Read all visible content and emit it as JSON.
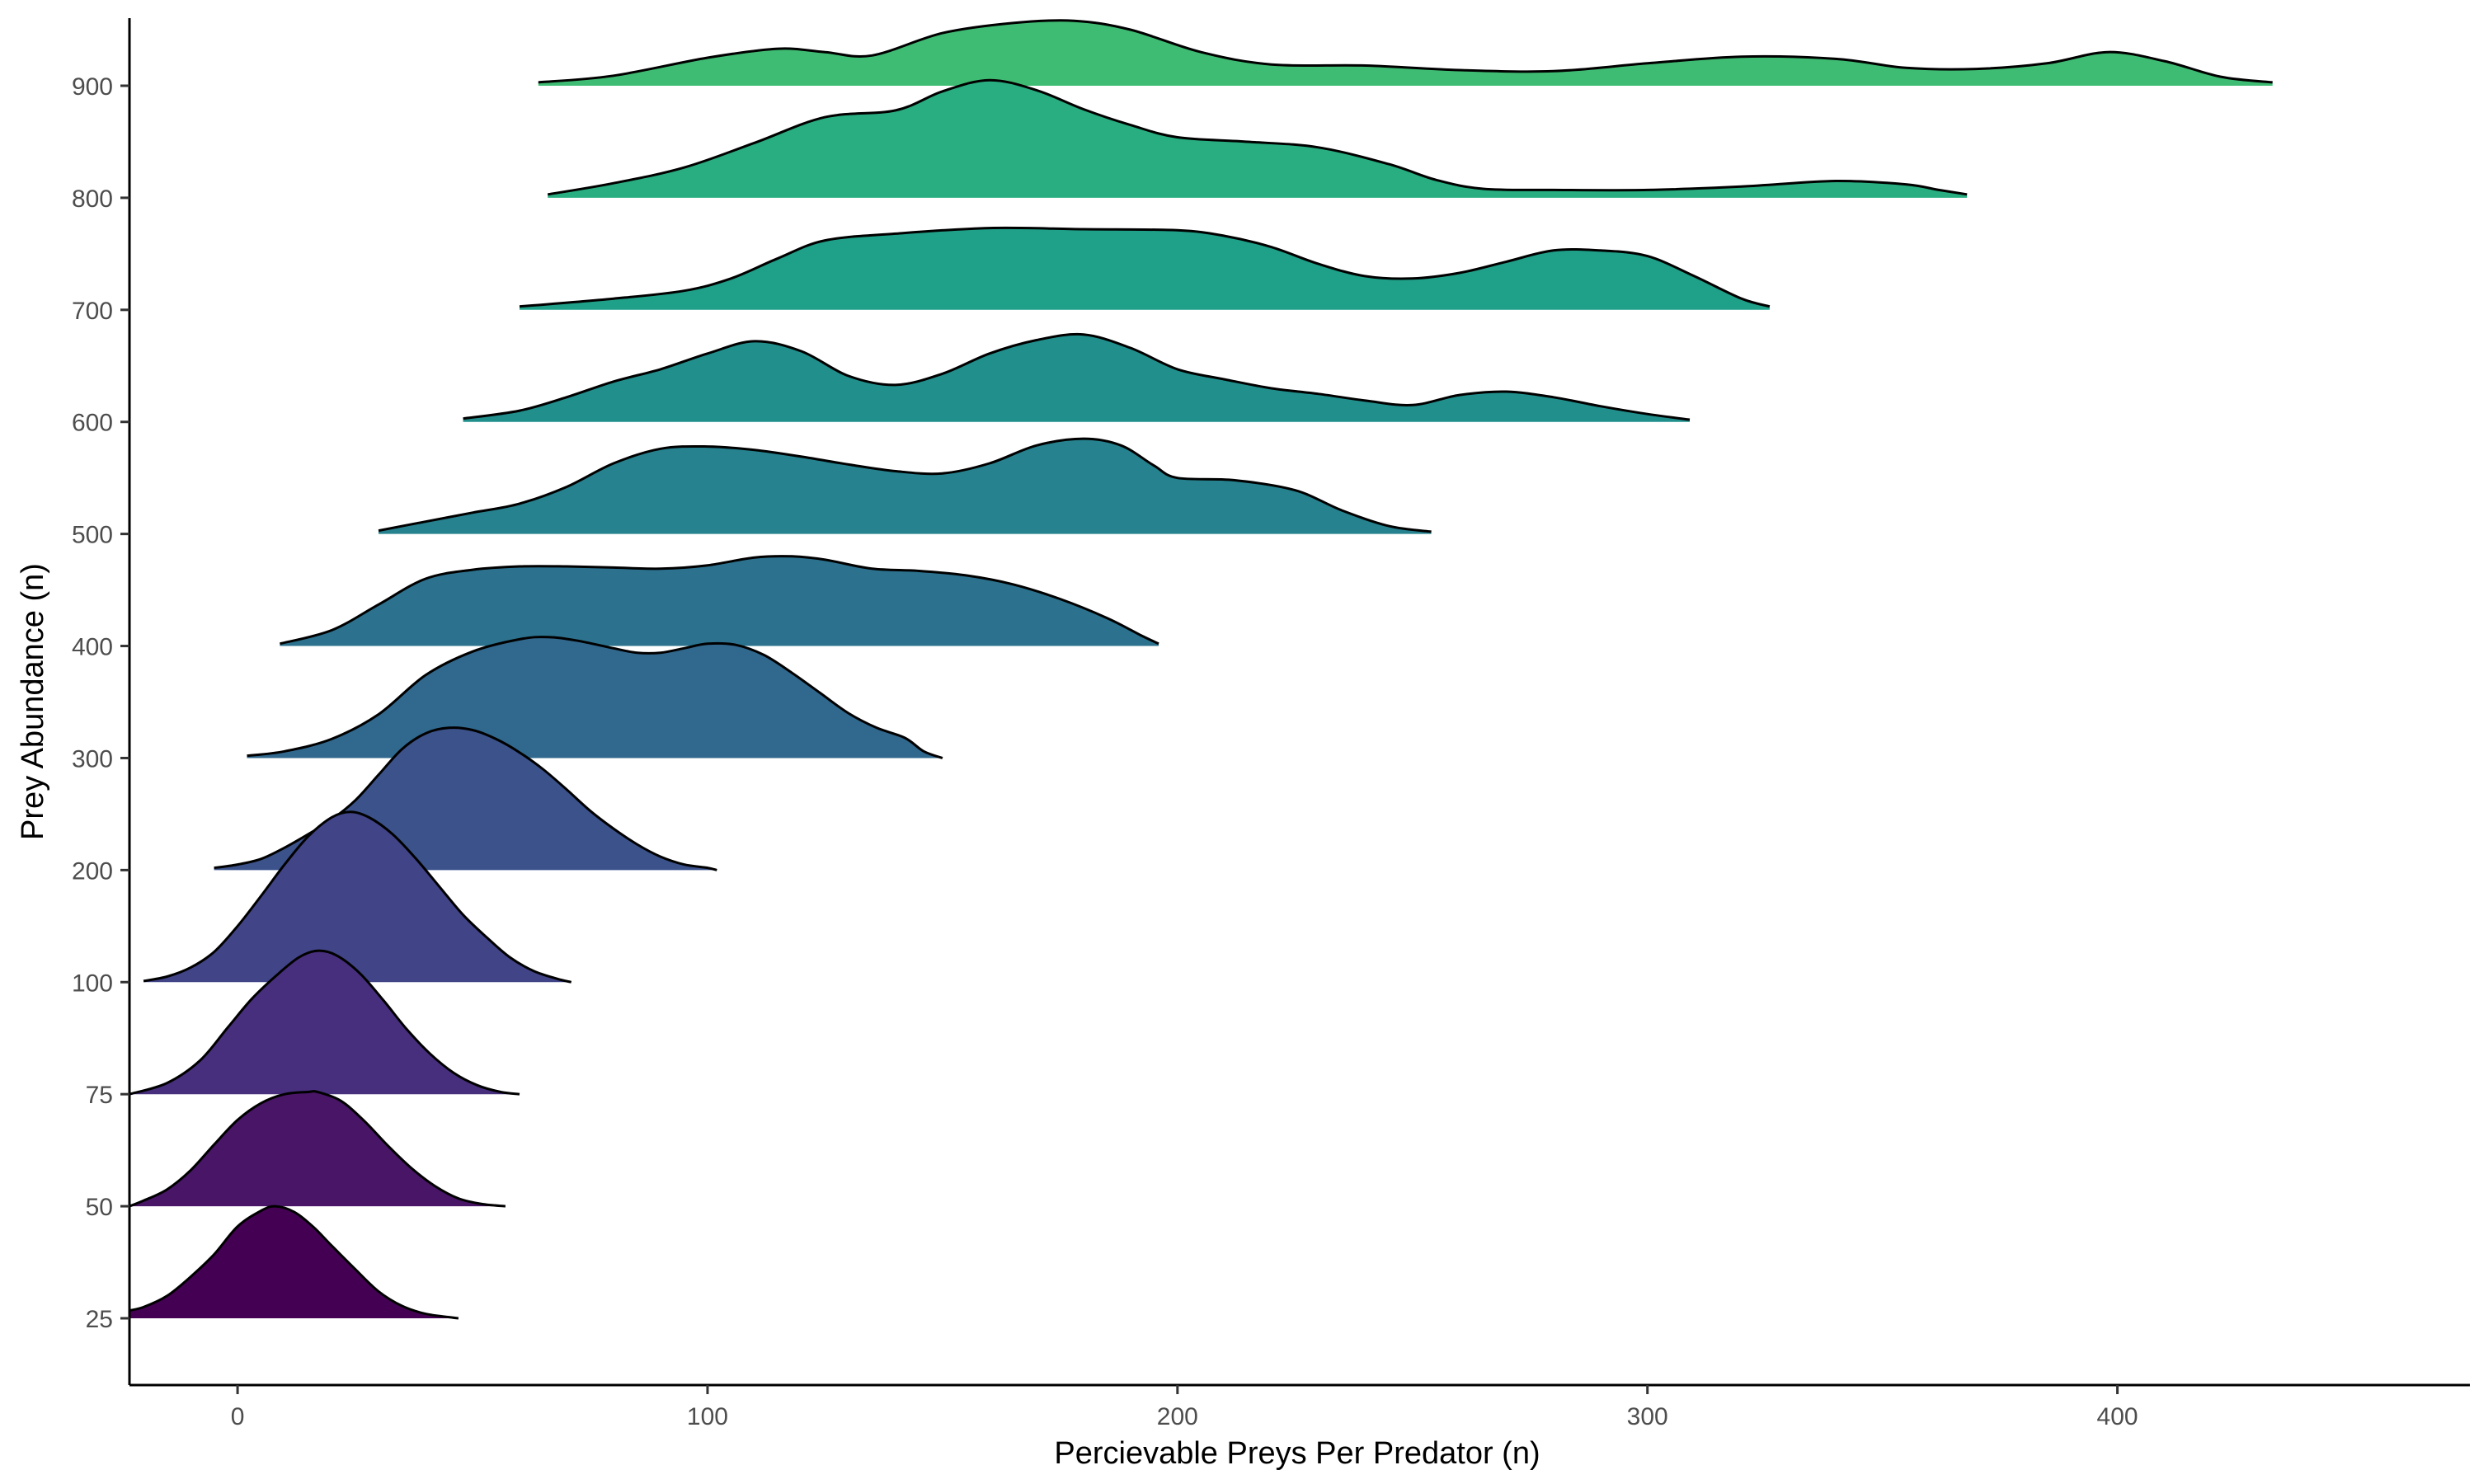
{
  "chart_data": {
    "type": "ridgeline",
    "title": "",
    "xlabel": "Percievable Preys Per Predator (n)",
    "ylabel": "Prey Abundance (n)",
    "xlim": [
      -23,
      475
    ],
    "x_ticks": [
      0,
      100,
      200,
      300,
      400
    ],
    "y_ticks": [
      "25",
      "50",
      "75",
      "100",
      "200",
      "300",
      "400",
      "500",
      "600",
      "700",
      "800",
      "900"
    ],
    "grid": false,
    "legend": "none",
    "ridge_scale_in_rows": 1.0,
    "series": [
      {
        "name": "25",
        "color": "#440154",
        "points": [
          [
            -23,
            0.07
          ],
          [
            -20,
            0.1
          ],
          [
            -15,
            0.2
          ],
          [
            -10,
            0.37
          ],
          [
            -5,
            0.57
          ],
          [
            0,
            0.82
          ],
          [
            5,
            0.96
          ],
          [
            8,
            1.0
          ],
          [
            12,
            0.95
          ],
          [
            16,
            0.82
          ],
          [
            20,
            0.65
          ],
          [
            25,
            0.44
          ],
          [
            30,
            0.24
          ],
          [
            35,
            0.11
          ],
          [
            40,
            0.04
          ],
          [
            45,
            0.01
          ],
          [
            47,
            0.0
          ]
        ]
      },
      {
        "name": "50",
        "color": "#481567",
        "points": [
          [
            -23,
            0.0
          ],
          [
            -20,
            0.05
          ],
          [
            -15,
            0.15
          ],
          [
            -10,
            0.32
          ],
          [
            -5,
            0.55
          ],
          [
            0,
            0.77
          ],
          [
            5,
            0.92
          ],
          [
            10,
            1.0
          ],
          [
            15,
            1.02
          ],
          [
            17,
            1.02
          ],
          [
            22,
            0.94
          ],
          [
            27,
            0.76
          ],
          [
            32,
            0.54
          ],
          [
            37,
            0.34
          ],
          [
            42,
            0.18
          ],
          [
            47,
            0.07
          ],
          [
            52,
            0.02
          ],
          [
            57,
            0.0
          ]
        ]
      },
      {
        "name": "75",
        "color": "#472f7d",
        "points": [
          [
            -23,
            0.0
          ],
          [
            -15,
            0.1
          ],
          [
            -8,
            0.3
          ],
          [
            -2,
            0.6
          ],
          [
            3,
            0.85
          ],
          [
            8,
            1.05
          ],
          [
            13,
            1.22
          ],
          [
            17,
            1.28
          ],
          [
            21,
            1.24
          ],
          [
            26,
            1.08
          ],
          [
            31,
            0.84
          ],
          [
            36,
            0.58
          ],
          [
            41,
            0.36
          ],
          [
            46,
            0.19
          ],
          [
            51,
            0.08
          ],
          [
            56,
            0.02
          ],
          [
            60,
            0.0
          ]
        ]
      },
      {
        "name": "100",
        "color": "#414487",
        "points": [
          [
            -20,
            0.01
          ],
          [
            -15,
            0.05
          ],
          [
            -10,
            0.13
          ],
          [
            -5,
            0.27
          ],
          [
            0,
            0.5
          ],
          [
            5,
            0.77
          ],
          [
            10,
            1.05
          ],
          [
            15,
            1.3
          ],
          [
            20,
            1.47
          ],
          [
            24,
            1.52
          ],
          [
            28,
            1.47
          ],
          [
            33,
            1.32
          ],
          [
            38,
            1.1
          ],
          [
            43,
            0.85
          ],
          [
            48,
            0.6
          ],
          [
            53,
            0.4
          ],
          [
            58,
            0.22
          ],
          [
            63,
            0.1
          ],
          [
            68,
            0.03
          ],
          [
            71,
            0.0
          ]
        ]
      },
      {
        "name": "200",
        "color": "#3b528b",
        "points": [
          [
            -5,
            0.02
          ],
          [
            0,
            0.05
          ],
          [
            5,
            0.1
          ],
          [
            10,
            0.2
          ],
          [
            15,
            0.32
          ],
          [
            20,
            0.45
          ],
          [
            25,
            0.62
          ],
          [
            30,
            0.85
          ],
          [
            35,
            1.08
          ],
          [
            40,
            1.22
          ],
          [
            45,
            1.27
          ],
          [
            50,
            1.25
          ],
          [
            55,
            1.17
          ],
          [
            60,
            1.05
          ],
          [
            65,
            0.9
          ],
          [
            70,
            0.72
          ],
          [
            75,
            0.53
          ],
          [
            80,
            0.37
          ],
          [
            85,
            0.23
          ],
          [
            90,
            0.12
          ],
          [
            95,
            0.05
          ],
          [
            100,
            0.02
          ],
          [
            102,
            0.0
          ]
        ]
      },
      {
        "name": "300",
        "color": "#31688e",
        "points": [
          [
            2,
            0.02
          ],
          [
            10,
            0.06
          ],
          [
            20,
            0.17
          ],
          [
            30,
            0.39
          ],
          [
            40,
            0.74
          ],
          [
            50,
            0.95
          ],
          [
            60,
            1.06
          ],
          [
            66,
            1.08
          ],
          [
            72,
            1.05
          ],
          [
            80,
            0.98
          ],
          [
            85,
            0.94
          ],
          [
            90,
            0.94
          ],
          [
            95,
            0.98
          ],
          [
            100,
            1.02
          ],
          [
            106,
            1.01
          ],
          [
            112,
            0.92
          ],
          [
            118,
            0.76
          ],
          [
            124,
            0.58
          ],
          [
            130,
            0.4
          ],
          [
            136,
            0.27
          ],
          [
            142,
            0.18
          ],
          [
            146,
            0.06
          ],
          [
            150,
            0.0
          ]
        ]
      },
      {
        "name": "400",
        "color": "#2c728e",
        "points": [
          [
            9,
            0.02
          ],
          [
            20,
            0.14
          ],
          [
            30,
            0.37
          ],
          [
            40,
            0.6
          ],
          [
            50,
            0.68
          ],
          [
            60,
            0.71
          ],
          [
            70,
            0.71
          ],
          [
            80,
            0.7
          ],
          [
            90,
            0.69
          ],
          [
            100,
            0.72
          ],
          [
            110,
            0.79
          ],
          [
            118,
            0.8
          ],
          [
            125,
            0.77
          ],
          [
            135,
            0.69
          ],
          [
            145,
            0.67
          ],
          [
            155,
            0.63
          ],
          [
            165,
            0.55
          ],
          [
            175,
            0.42
          ],
          [
            185,
            0.25
          ],
          [
            192,
            0.1
          ],
          [
            196,
            0.02
          ]
        ]
      },
      {
        "name": "500",
        "color": "#26828e",
        "points": [
          [
            30,
            0.03
          ],
          [
            40,
            0.11
          ],
          [
            50,
            0.19
          ],
          [
            60,
            0.27
          ],
          [
            70,
            0.42
          ],
          [
            80,
            0.63
          ],
          [
            90,
            0.76
          ],
          [
            100,
            0.78
          ],
          [
            110,
            0.75
          ],
          [
            120,
            0.69
          ],
          [
            130,
            0.62
          ],
          [
            140,
            0.56
          ],
          [
            150,
            0.54
          ],
          [
            160,
            0.63
          ],
          [
            170,
            0.79
          ],
          [
            180,
            0.85
          ],
          [
            188,
            0.79
          ],
          [
            195,
            0.61
          ],
          [
            200,
            0.5
          ],
          [
            212,
            0.48
          ],
          [
            225,
            0.39
          ],
          [
            235,
            0.21
          ],
          [
            245,
            0.07
          ],
          [
            254,
            0.02
          ]
        ]
      },
      {
        "name": "600",
        "color": "#21908d",
        "points": [
          [
            48,
            0.03
          ],
          [
            60,
            0.1
          ],
          [
            70,
            0.22
          ],
          [
            80,
            0.36
          ],
          [
            90,
            0.47
          ],
          [
            100,
            0.61
          ],
          [
            110,
            0.72
          ],
          [
            120,
            0.63
          ],
          [
            130,
            0.41
          ],
          [
            140,
            0.33
          ],
          [
            150,
            0.43
          ],
          [
            160,
            0.61
          ],
          [
            170,
            0.73
          ],
          [
            180,
            0.78
          ],
          [
            190,
            0.66
          ],
          [
            200,
            0.47
          ],
          [
            210,
            0.38
          ],
          [
            220,
            0.3
          ],
          [
            230,
            0.25
          ],
          [
            240,
            0.19
          ],
          [
            250,
            0.15
          ],
          [
            260,
            0.24
          ],
          [
            270,
            0.27
          ],
          [
            280,
            0.22
          ],
          [
            290,
            0.14
          ],
          [
            300,
            0.07
          ],
          [
            309,
            0.02
          ]
        ]
      },
      {
        "name": "700",
        "color": "#1fa088",
        "points": [
          [
            60,
            0.03
          ],
          [
            80,
            0.1
          ],
          [
            95,
            0.17
          ],
          [
            105,
            0.28
          ],
          [
            115,
            0.46
          ],
          [
            125,
            0.62
          ],
          [
            140,
            0.68
          ],
          [
            160,
            0.73
          ],
          [
            180,
            0.72
          ],
          [
            200,
            0.71
          ],
          [
            210,
            0.66
          ],
          [
            220,
            0.56
          ],
          [
            230,
            0.41
          ],
          [
            240,
            0.3
          ],
          [
            250,
            0.28
          ],
          [
            260,
            0.33
          ],
          [
            270,
            0.43
          ],
          [
            280,
            0.53
          ],
          [
            290,
            0.53
          ],
          [
            300,
            0.48
          ],
          [
            310,
            0.3
          ],
          [
            320,
            0.1
          ],
          [
            326,
            0.03
          ]
        ]
      },
      {
        "name": "800",
        "color": "#28ae80",
        "points": [
          [
            66,
            0.03
          ],
          [
            80,
            0.13
          ],
          [
            95,
            0.27
          ],
          [
            110,
            0.49
          ],
          [
            125,
            0.72
          ],
          [
            140,
            0.78
          ],
          [
            150,
            0.95
          ],
          [
            160,
            1.05
          ],
          [
            170,
            0.96
          ],
          [
            180,
            0.79
          ],
          [
            190,
            0.65
          ],
          [
            200,
            0.54
          ],
          [
            215,
            0.5
          ],
          [
            230,
            0.45
          ],
          [
            245,
            0.3
          ],
          [
            255,
            0.16
          ],
          [
            265,
            0.08
          ],
          [
            280,
            0.07
          ],
          [
            300,
            0.07
          ],
          [
            320,
            0.1
          ],
          [
            340,
            0.15
          ],
          [
            355,
            0.12
          ],
          [
            362,
            0.07
          ],
          [
            368,
            0.03
          ]
        ]
      },
      {
        "name": "900",
        "color": "#3fbc73",
        "points": [
          [
            64,
            0.03
          ],
          [
            80,
            0.09
          ],
          [
            100,
            0.25
          ],
          [
            115,
            0.33
          ],
          [
            125,
            0.3
          ],
          [
            135,
            0.27
          ],
          [
            150,
            0.47
          ],
          [
            165,
            0.56
          ],
          [
            178,
            0.58
          ],
          [
            190,
            0.5
          ],
          [
            205,
            0.3
          ],
          [
            220,
            0.19
          ],
          [
            240,
            0.18
          ],
          [
            260,
            0.14
          ],
          [
            280,
            0.13
          ],
          [
            300,
            0.2
          ],
          [
            320,
            0.26
          ],
          [
            340,
            0.24
          ],
          [
            355,
            0.16
          ],
          [
            370,
            0.15
          ],
          [
            385,
            0.2
          ],
          [
            398,
            0.3
          ],
          [
            410,
            0.22
          ],
          [
            422,
            0.08
          ],
          [
            433,
            0.03
          ]
        ]
      }
    ]
  }
}
